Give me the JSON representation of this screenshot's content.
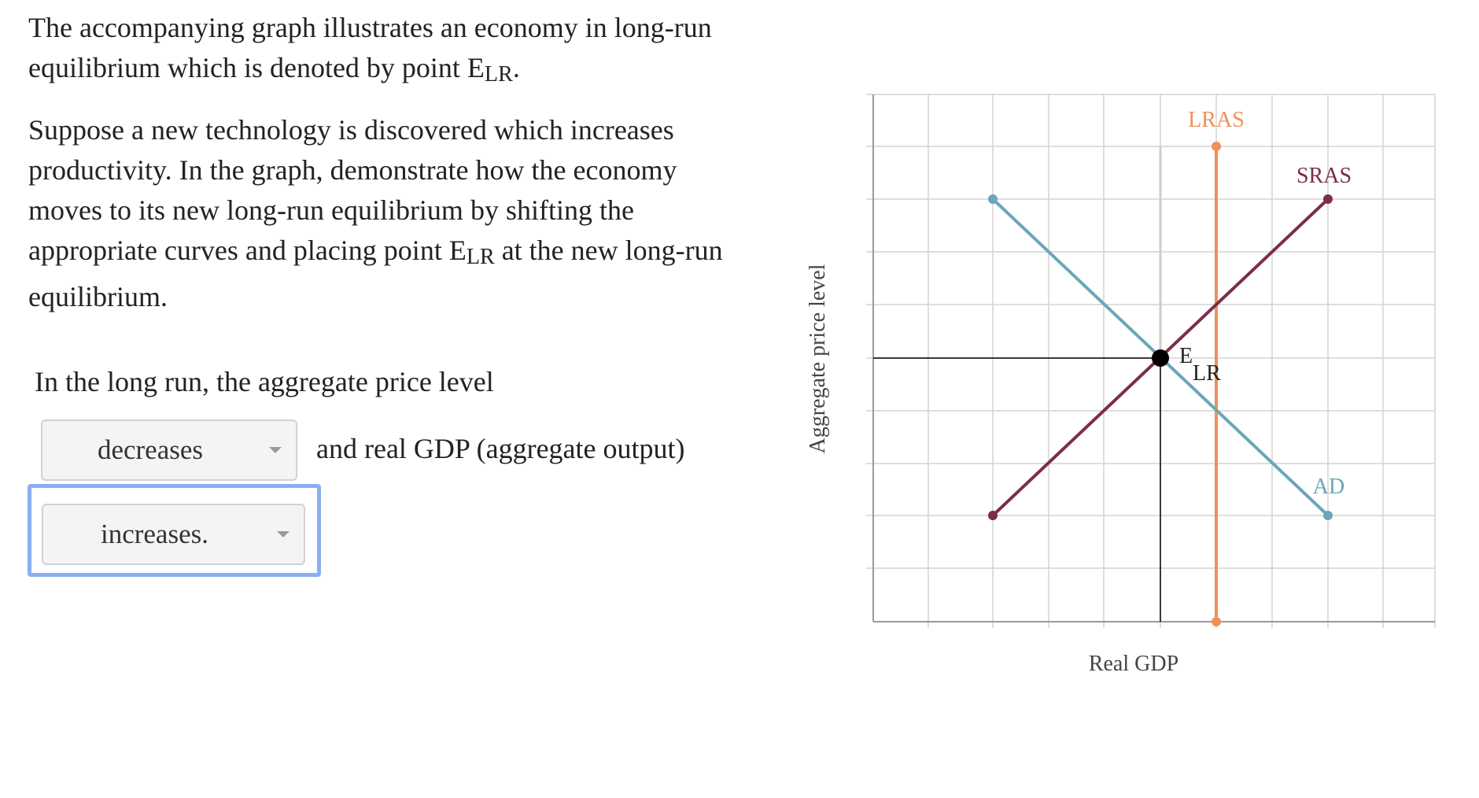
{
  "question": {
    "p1_text": "The accompanying graph illustrates an economy in long-run equilibrium which is denoted by point E",
    "p1_sub": "LR",
    "p1_end": ".",
    "p2_text_a": "Suppose a new technology is discovered which increases productivity. In the graph, demonstrate how the economy moves to its new long-run equilibrium by shifting the appropriate curves and placing point E",
    "p2_sub": "LR",
    "p2_text_b": " at the new long-run equilibrium."
  },
  "answer": {
    "prompt": "In the long run, the aggregate price level",
    "price_select": {
      "value": "decreases"
    },
    "connector": "and real GDP (aggregate output)",
    "gdp_select": {
      "value": "increases."
    }
  },
  "graph": {
    "ylabel": "Aggregate price level",
    "xlabel": "Real GDP",
    "curves": {
      "lras": {
        "label": "LRAS",
        "color": "#f0905a"
      },
      "sras": {
        "label": "SRAS",
        "color": "#7b2d4a"
      },
      "ad": {
        "label": "AD",
        "color": "#6aa6b8"
      }
    },
    "point": {
      "label": "E",
      "sub": "LR"
    },
    "colors": {
      "grid": "#d4d4d4",
      "axis": "#9a9a9a",
      "old_lras": "#cccccc",
      "guide": "#000000"
    }
  }
}
